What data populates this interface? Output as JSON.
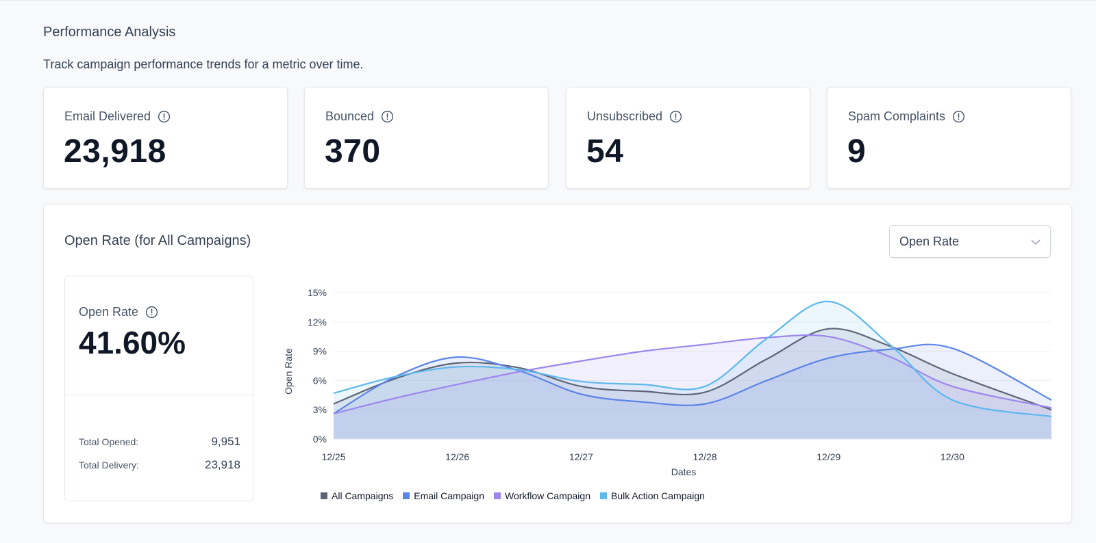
{
  "header": {
    "title": "Performance Analysis",
    "subtitle": "Track campaign performance trends for a metric over time."
  },
  "stats": [
    {
      "label": "Email Delivered",
      "value": "23,918"
    },
    {
      "label": "Bounced",
      "value": "370"
    },
    {
      "label": "Unsubscribed",
      "value": "54"
    },
    {
      "label": "Spam Complaints",
      "value": "9"
    }
  ],
  "chart_panel": {
    "title": "Open Rate (for All Campaigns)",
    "metric_select": {
      "value": "Open Rate"
    },
    "summary": {
      "label": "Open Rate",
      "value": "41.60%",
      "rows": [
        {
          "key": "Total Opened:",
          "value": "9,951"
        },
        {
          "key": "Total Delivery:",
          "value": "23,918"
        }
      ]
    }
  },
  "chart_data": {
    "type": "area",
    "xlabel": "Dates",
    "ylabel": "Open Rate",
    "x": [
      0,
      0.5,
      1,
      1.5,
      2,
      2.5,
      3,
      3.5,
      4,
      4.5,
      5,
      5.8
    ],
    "x_ticks": [
      "12/25",
      "12/26",
      "12/27",
      "12/28",
      "12/29",
      "12/30"
    ],
    "y_ticks": [
      "0%",
      "3%",
      "6%",
      "9%",
      "12%",
      "15%"
    ],
    "ylim": [
      0,
      15
    ],
    "grid": true,
    "legend_position": "bottom",
    "series": [
      {
        "name": "All Campaigns",
        "color": "#5e6577",
        "values": [
          3.6,
          6.2,
          7.8,
          7.3,
          5.4,
          4.9,
          4.8,
          8.2,
          11.3,
          9.5,
          6.7,
          3.0
        ]
      },
      {
        "name": "Email Campaign",
        "color": "#5b84e8",
        "values": [
          2.6,
          6.4,
          8.4,
          7.0,
          4.6,
          3.8,
          3.6,
          6.0,
          8.3,
          9.2,
          9.3,
          4.0
        ]
      },
      {
        "name": "Workflow Campaign",
        "color": "#9d86ee",
        "values": [
          2.6,
          4.2,
          5.6,
          6.9,
          8.0,
          9.0,
          9.7,
          10.4,
          10.5,
          8.4,
          5.4,
          3.2
        ]
      },
      {
        "name": "Bulk Action Campaign",
        "color": "#5cb8ee",
        "values": [
          4.7,
          6.4,
          7.4,
          7.1,
          5.9,
          5.6,
          5.4,
          10.3,
          14.1,
          9.6,
          4.0,
          2.3
        ]
      }
    ]
  }
}
